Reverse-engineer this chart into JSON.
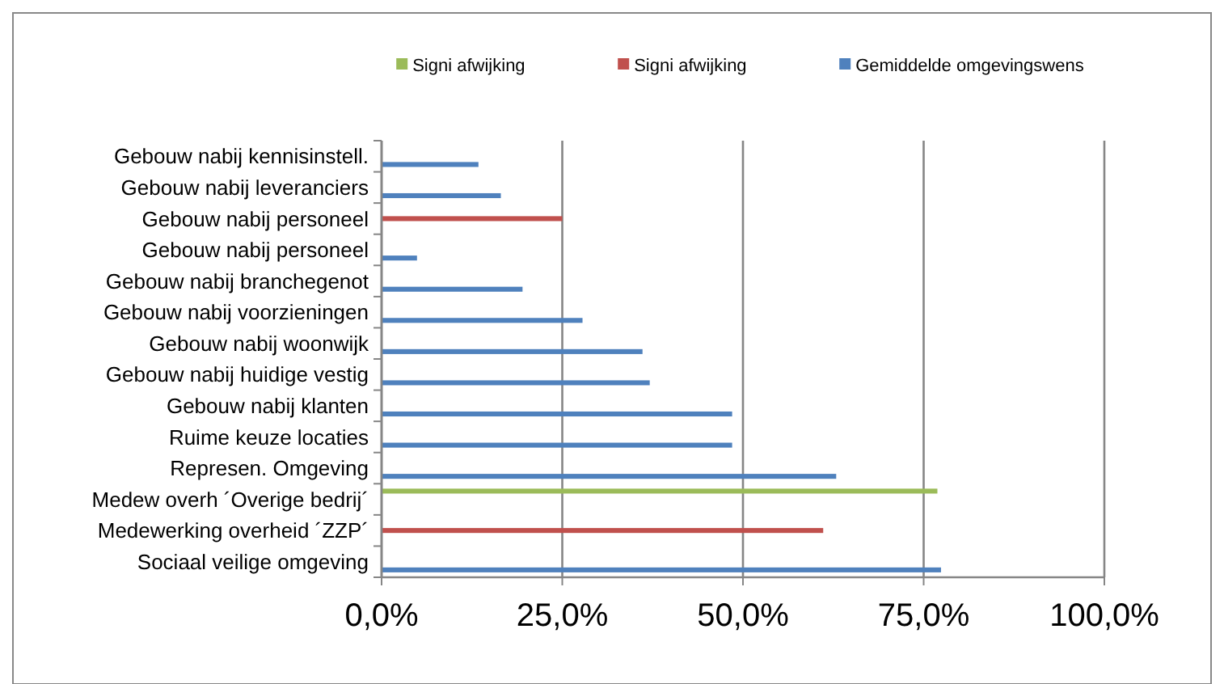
{
  "chart_data": {
    "type": "bar",
    "orientation": "horizontal",
    "categories": [
      "Gebouw nabij kennisinstell.",
      "Gebouw nabij leveranciers",
      "Gebouw nabij personeel",
      "Gebouw nabij personeel",
      "Gebouw nabij branchegenot",
      "Gebouw nabij voorzieningen",
      "Gebouw nabij woonwijk",
      "Gebouw nabij huidige vestig",
      "Gebouw nabij klanten",
      "Ruime keuze locaties",
      "Represen. Omgeving",
      "Medew overh ´Overige bedrij´",
      "Medewerking overheid ´ZZP´",
      "Sociaal veilige omgeving"
    ],
    "series": [
      {
        "name": "Signi afwijking",
        "color": "#9bbb59",
        "values": [
          null,
          null,
          null,
          null,
          null,
          null,
          null,
          null,
          null,
          null,
          null,
          76.9,
          null,
          null
        ]
      },
      {
        "name": "Signi afwijking",
        "color": "#c0504d",
        "values": [
          null,
          null,
          25,
          null,
          null,
          null,
          null,
          null,
          null,
          null,
          null,
          null,
          61.1,
          null
        ]
      },
      {
        "name": "Gemiddelde omgevingswens",
        "color": "#4f81bd",
        "values": [
          13.4,
          16.5,
          null,
          4.9,
          19.5,
          27.8,
          36.1,
          37.1,
          48.5,
          48.5,
          62.9,
          null,
          null,
          77.4
        ]
      }
    ],
    "xlim": [
      0,
      100
    ],
    "xticks": [
      {
        "value": 0,
        "label": "0,0%"
      },
      {
        "value": 25,
        "label": "25,0%"
      },
      {
        "value": 50,
        "label": "50,0%"
      },
      {
        "value": 75,
        "label": "75,0%"
      },
      {
        "value": 100,
        "label": "100,0%"
      }
    ],
    "grid": "x",
    "legend": "top"
  }
}
